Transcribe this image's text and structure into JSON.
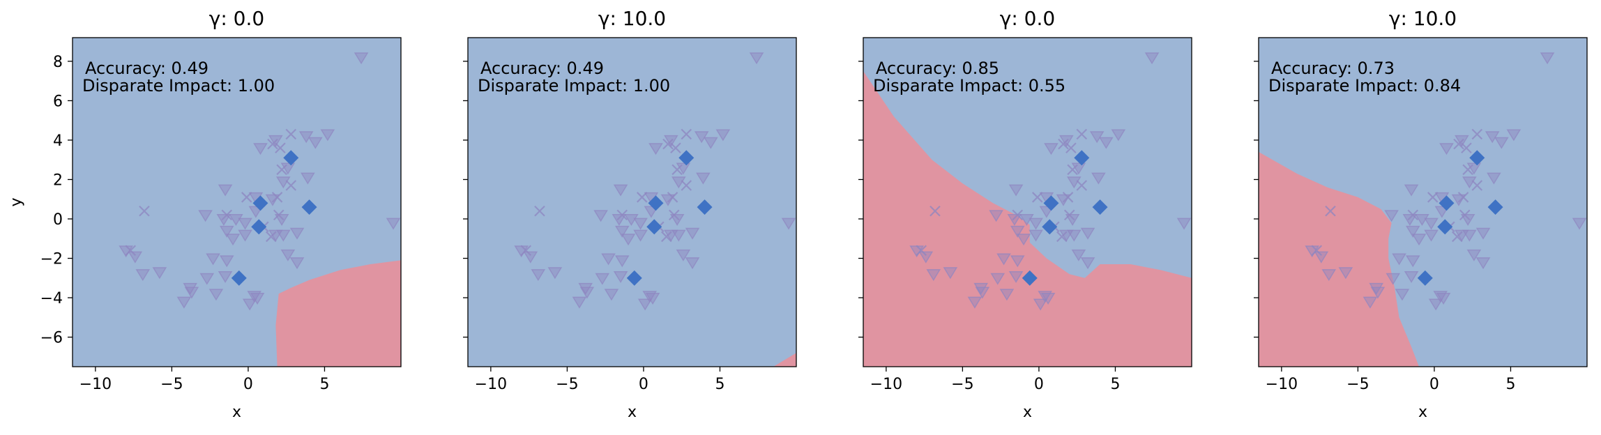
{
  "colors": {
    "positive_region": "#9db6d6",
    "negative_region": "#e094a1",
    "highlight_marker": "#3f72c4",
    "faint_marker": "#8e86c0",
    "red_marker": "#b83a68"
  },
  "chart_data": [
    {
      "type": "scatter",
      "title": "γ: 0.0",
      "xlabel": "x",
      "ylabel": "y",
      "xlim": [
        -11.5,
        10
      ],
      "ylim": [
        -7.5,
        9.2
      ],
      "xticks": [
        "−10",
        "−5",
        "0",
        "5"
      ],
      "yticks": [
        "8",
        "6",
        "4",
        "2",
        "0",
        "−2",
        "−4",
        "−6"
      ],
      "annotations": [
        "Accuracy: 0.49",
        "Disparate Impact: 1.00"
      ],
      "negative_region_polygon": [
        [
          10,
          -2.1
        ],
        [
          8,
          -2.3
        ],
        [
          6,
          -2.6
        ],
        [
          4,
          -3.1
        ],
        [
          2.8,
          -3.5
        ],
        [
          2,
          -3.8
        ],
        [
          1.8,
          -5.4
        ],
        [
          1.9,
          -7.5
        ],
        [
          10,
          -7.5
        ]
      ]
    },
    {
      "type": "scatter",
      "title": "γ: 10.0",
      "xlabel": "x",
      "ylabel": "",
      "xlim": [
        -11.5,
        10
      ],
      "ylim": [
        -7.5,
        9.2
      ],
      "xticks": [
        "−10",
        "−5",
        "0",
        "5"
      ],
      "yticks": [],
      "annotations": [
        "Accuracy: 0.49",
        "Disparate Impact: 1.00"
      ],
      "negative_region_polygon": [
        [
          8.5,
          -7.5
        ],
        [
          10,
          -6.8
        ],
        [
          10,
          -7.5
        ]
      ]
    },
    {
      "type": "scatter",
      "title": "γ: 0.0",
      "xlabel": "x",
      "ylabel": "",
      "xlim": [
        -11.5,
        10
      ],
      "ylim": [
        -7.5,
        9.2
      ],
      "xticks": [
        "−10",
        "−5",
        "0",
        "5"
      ],
      "yticks": [],
      "annotations": [
        "Accuracy: 0.85",
        "Disparate Impact: 0.55"
      ],
      "negative_region_polygon": [
        [
          -11.5,
          7.5
        ],
        [
          -9.5,
          5.2
        ],
        [
          -7,
          3
        ],
        [
          -5,
          1.8
        ],
        [
          -3,
          0.8
        ],
        [
          -1.5,
          0.2
        ],
        [
          -0.6,
          -0.3
        ],
        [
          -0.6,
          -1.2
        ],
        [
          0.5,
          -2
        ],
        [
          2,
          -2.8
        ],
        [
          3,
          -3
        ],
        [
          4,
          -2.3
        ],
        [
          6,
          -2.3
        ],
        [
          8,
          -2.6
        ],
        [
          10,
          -3
        ],
        [
          10,
          -7.5
        ],
        [
          -11.5,
          -7.5
        ]
      ]
    },
    {
      "type": "scatter",
      "title": "γ: 10.0",
      "xlabel": "x",
      "ylabel": "",
      "xlim": [
        -11.5,
        10
      ],
      "ylim": [
        -7.5,
        9.2
      ],
      "xticks": [
        "−10",
        "−5",
        "0",
        "5"
      ],
      "yticks": [],
      "annotations": [
        "Accuracy: 0.73",
        "Disparate Impact: 0.84"
      ],
      "negative_region_polygon": [
        [
          -11.5,
          3.4
        ],
        [
          -9,
          2.3
        ],
        [
          -7,
          1.6
        ],
        [
          -5,
          1.1
        ],
        [
          -3.5,
          0.5
        ],
        [
          -2.8,
          -0.2
        ],
        [
          -3,
          -1
        ],
        [
          -3,
          -2
        ],
        [
          -2.6,
          -3.5
        ],
        [
          -2.3,
          -5
        ],
        [
          -1.5,
          -6.5
        ],
        [
          -1,
          -7.5
        ],
        [
          -11.5,
          -7.5
        ]
      ]
    }
  ],
  "points": {
    "highlight_diamonds": [
      [
        2.8,
        3.1
      ],
      [
        0.8,
        0.8
      ],
      [
        4,
        0.6
      ],
      [
        0.7,
        -0.4
      ],
      [
        -0.6,
        -3
      ]
    ],
    "triangles": [
      [
        7.4,
        8.2
      ],
      [
        5.2,
        4.3
      ],
      [
        4.4,
        3.9
      ],
      [
        3.8,
        4.2
      ],
      [
        1.8,
        4
      ],
      [
        0.8,
        3.6
      ],
      [
        2.6,
        2.6
      ],
      [
        3.9,
        2.1
      ],
      [
        2.3,
        1.9
      ],
      [
        0.5,
        1.1
      ],
      [
        1.6,
        1
      ],
      [
        2.2,
        0
      ],
      [
        -1.5,
        1.5
      ],
      [
        -0.8,
        0
      ],
      [
        -0.2,
        -0.2
      ],
      [
        0.5,
        0.4
      ],
      [
        2.3,
        -0.8
      ],
      [
        9.5,
        -0.2
      ],
      [
        -2.8,
        0.2
      ],
      [
        -1.6,
        0
      ],
      [
        -1.4,
        -0.6
      ],
      [
        -1,
        -1
      ],
      [
        -0.2,
        -0.8
      ],
      [
        1.8,
        -0.8
      ],
      [
        3.2,
        -0.7
      ],
      [
        2.6,
        -1.8
      ],
      [
        3.2,
        -2.2
      ],
      [
        -8,
        -1.6
      ],
      [
        -7.4,
        -1.9
      ],
      [
        -6.9,
        -2.8
      ],
      [
        -5.8,
        -2.7
      ],
      [
        -2.3,
        -2
      ],
      [
        -1.4,
        -2.1
      ],
      [
        -1.5,
        -2.9
      ],
      [
        -2.7,
        -3
      ],
      [
        -3.8,
        -3.5
      ],
      [
        -3.7,
        -3.7
      ],
      [
        -4.2,
        -4.2
      ],
      [
        -2.1,
        -3.8
      ],
      [
        0.4,
        -3.9
      ],
      [
        0.6,
        -4
      ],
      [
        0.1,
        -4.3
      ]
    ],
    "crosses": [
      [
        1.6,
        3.8
      ],
      [
        2.8,
        4.3
      ],
      [
        2.1,
        3.6
      ],
      [
        2.2,
        2.5
      ],
      [
        2.8,
        1.7
      ],
      [
        1.9,
        1.1
      ],
      [
        -0.1,
        1.1
      ],
      [
        2,
        0.2
      ],
      [
        1,
        -0.4
      ],
      [
        1.5,
        -0.9
      ],
      [
        -6.8,
        0.4
      ],
      [
        -7.7,
        -1.6
      ],
      [
        -1.4,
        0.2
      ]
    ]
  }
}
